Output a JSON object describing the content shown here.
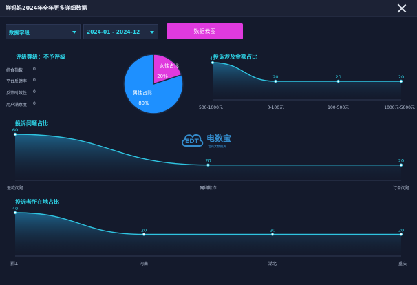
{
  "window": {
    "title": "鲜妈妈2024年全年更多详细数据"
  },
  "controls": {
    "field_select": "数据字段",
    "date_select": "2024-01 - 2024-12",
    "cloud_button": "数据云图"
  },
  "rating": {
    "title": "评级等级：不予评级",
    "metrics": [
      {
        "label": "综合指数",
        "value": "0"
      },
      {
        "label": "平台反馈率",
        "value": "0"
      },
      {
        "label": "反馈时效性",
        "value": "0"
      },
      {
        "label": "用户满意度",
        "value": "0"
      }
    ]
  },
  "watermark": {
    "logo": "EDT",
    "name": "电数宝",
    "tagline": "电商大数据库"
  },
  "colors": {
    "accent": "#2fd5e8",
    "pink": "#e03ade",
    "blue": "#1e90ff",
    "line": "#2fc4e0"
  },
  "chart_data": [
    {
      "type": "pie",
      "categories": [
        "女性占比",
        "男性占比"
      ],
      "values": [
        20,
        80
      ],
      "data_labels": [
        "20%",
        "80%"
      ],
      "colors": [
        "#e03ade",
        "#1e90ff"
      ]
    },
    {
      "type": "area",
      "title": "投诉涉及金额占比",
      "x": [
        "500-1000元",
        "0-100元",
        "100-500元",
        "1000元-5000元"
      ],
      "values": [
        40,
        20,
        20,
        20
      ]
    },
    {
      "type": "area",
      "title": "投诉问题占比",
      "x": [
        "退款问题",
        "网络欺诈",
        "订单问题"
      ],
      "values": [
        60,
        20,
        20
      ]
    },
    {
      "type": "area",
      "title": "投诉者所在地占比",
      "x": [
        "浙江",
        "河南",
        "湖北",
        "重庆"
      ],
      "values": [
        40,
        20,
        20,
        20
      ]
    }
  ]
}
